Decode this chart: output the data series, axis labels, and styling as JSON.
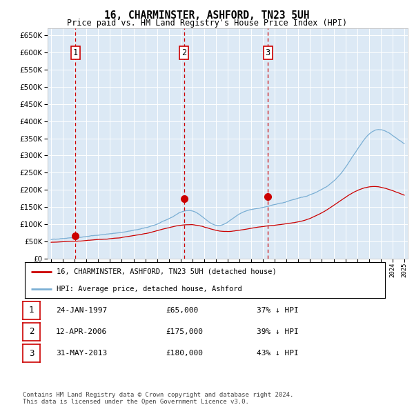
{
  "title": "16, CHARMINSTER, ASHFORD, TN23 5UH",
  "subtitle": "Price paid vs. HM Land Registry's House Price Index (HPI)",
  "ylim": [
    0,
    670000
  ],
  "yticks": [
    0,
    50000,
    100000,
    150000,
    200000,
    250000,
    300000,
    350000,
    400000,
    450000,
    500000,
    550000,
    600000,
    650000
  ],
  "bg_color": "#dce9f5",
  "grid_color": "#ffffff",
  "sale_points": [
    {
      "date_num": 1997.07,
      "price": 65000,
      "label": "1"
    },
    {
      "date_num": 2006.28,
      "price": 175000,
      "label": "2"
    },
    {
      "date_num": 2013.41,
      "price": 180000,
      "label": "3"
    }
  ],
  "legend_entries": [
    "16, CHARMINSTER, ASHFORD, TN23 5UH (detached house)",
    "HPI: Average price, detached house, Ashford"
  ],
  "table_rows": [
    {
      "num": "1",
      "date": "24-JAN-1997",
      "price": "£65,000",
      "pct": "37% ↓ HPI"
    },
    {
      "num": "2",
      "date": "12-APR-2006",
      "price": "£175,000",
      "pct": "39% ↓ HPI"
    },
    {
      "num": "3",
      "date": "31-MAY-2013",
      "price": "£180,000",
      "pct": "43% ↓ HPI"
    }
  ],
  "footer": "Contains HM Land Registry data © Crown copyright and database right 2024.\nThis data is licensed under the Open Government Licence v3.0.",
  "red_line_color": "#cc0000",
  "blue_line_color": "#7bafd4",
  "sale_dot_color": "#cc0000",
  "vline_color": "#cc0000",
  "xlim_lo": 1994.7,
  "xlim_hi": 2025.3,
  "xtick_start": 1995,
  "xtick_end": 2025
}
